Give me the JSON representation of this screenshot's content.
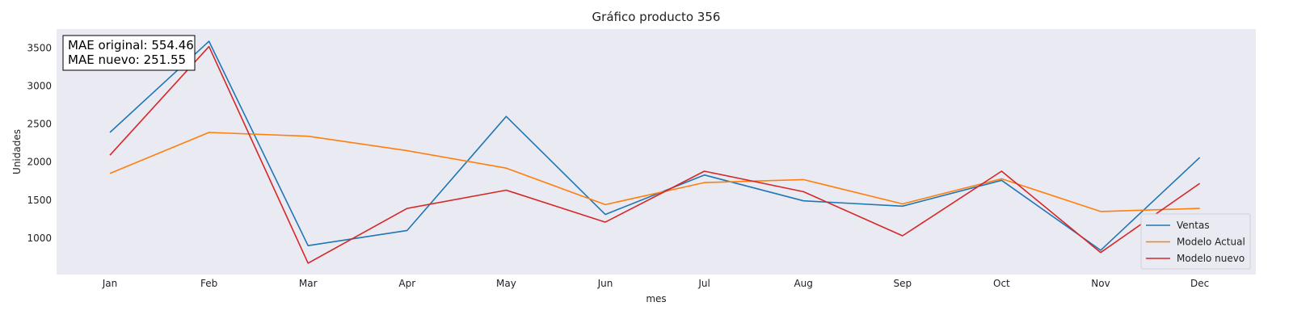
{
  "chart_data": {
    "type": "line",
    "title": "Gráfico producto 356",
    "xlabel": "mes",
    "ylabel": "Unidades",
    "categories": [
      "Jan",
      "Feb",
      "Mar",
      "Apr",
      "May",
      "Jun",
      "Jul",
      "Aug",
      "Sep",
      "Oct",
      "Nov",
      "Dec"
    ],
    "yticks": [
      1000,
      1500,
      2000,
      2500,
      3000,
      3500
    ],
    "ylim": [
      520,
      3750
    ],
    "grid": false,
    "legend_position": "lower-right",
    "series": [
      {
        "name": "Ventas",
        "color": "#1f77b4",
        "values": [
          2390,
          3590,
          900,
          1100,
          2600,
          1310,
          1830,
          1490,
          1420,
          1760,
          840,
          2060
        ]
      },
      {
        "name": "Modelo Actual",
        "color": "#ff7f0e",
        "values": [
          1850,
          2390,
          2340,
          2150,
          1920,
          1440,
          1730,
          1770,
          1450,
          1780,
          1350,
          1390
        ]
      },
      {
        "name": "Modelo nuevo",
        "color": "#d62728",
        "values": [
          2090,
          3520,
          670,
          1390,
          1630,
          1210,
          1880,
          1610,
          1030,
          1880,
          810,
          1720
        ]
      }
    ],
    "annotation": {
      "lines": [
        "MAE original: 554.46",
        "MAE nuevo: 251.55"
      ]
    }
  }
}
